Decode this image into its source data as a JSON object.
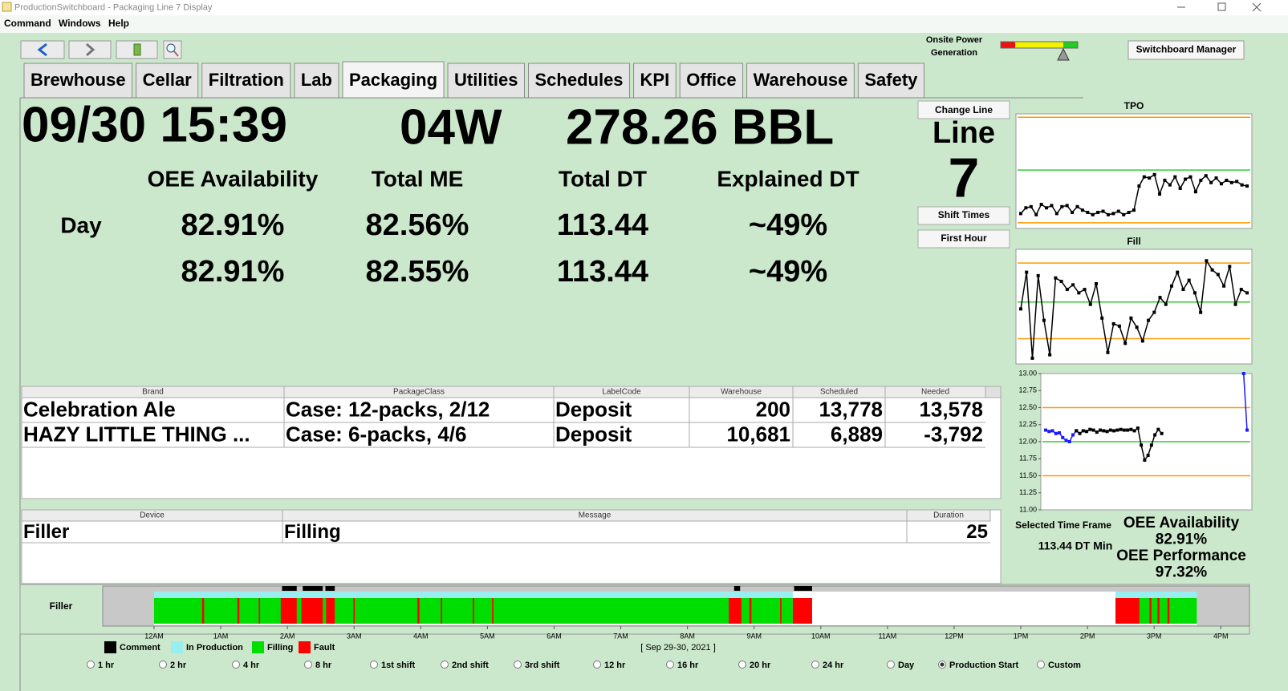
{
  "window": {
    "title": "ProductionSwitchboard - Packaging Line 7 Display",
    "menu": [
      "Command",
      "Windows",
      "Help"
    ]
  },
  "power": {
    "label_lines": [
      "Onsite Power",
      "Generation"
    ]
  },
  "switchboard_button": "Switchboard Manager",
  "tabs": [
    "Brewhouse",
    "Cellar",
    "Filtration",
    "Lab",
    "Packaging",
    "Utilities",
    "Schedules",
    "KPI",
    "Office",
    "Warehouse",
    "Safety"
  ],
  "active_tab": 4,
  "header": {
    "datetime": "09/30 15:39",
    "week": "04W",
    "volume": "278.26 BBL"
  },
  "metrics": {
    "columns": [
      "OEE Availability",
      "Total ME",
      "Total DT",
      "Explained DT"
    ],
    "rows": [
      {
        "label": "Day",
        "cells": [
          "82.91%",
          "82.56%",
          "113.44",
          "~49%"
        ]
      },
      {
        "cells": [
          "82.91%",
          "82.55%",
          "113.44",
          "~49%"
        ]
      }
    ]
  },
  "line_panel": {
    "change_button": "Change Line",
    "label": "Line",
    "number": "7",
    "buttons": [
      "Shift Times",
      "First Hour"
    ]
  },
  "brand_table": {
    "columns": [
      "Brand",
      "PackageClass",
      "LabelCode",
      "Warehouse",
      "Scheduled",
      "Needed"
    ],
    "rows": [
      [
        "Celebration Ale",
        "Case: 12-packs, 2/12",
        "Deposit",
        "200",
        "13,778",
        "13,578"
      ],
      [
        "HAZY LITTLE THING ...",
        "Case: 6-packs, 4/6",
        "Deposit",
        "10,681",
        "6,889",
        "-3,792"
      ]
    ]
  },
  "message_table": {
    "columns": [
      "Device",
      "Message",
      "Duration"
    ],
    "rows": [
      [
        "Filler",
        "Filling",
        "25"
      ]
    ]
  },
  "charts": [
    {
      "type": "line",
      "title": "TPO",
      "ylim": [
        0,
        100
      ],
      "limits": [
        {
          "value": 97,
          "color": "#ff9900"
        },
        {
          "value": 51,
          "color": "#33cc33"
        },
        {
          "value": 5,
          "color": "#ff9900"
        }
      ],
      "series": [
        {
          "color": "#000000",
          "values": [
            13,
            18,
            19,
            12,
            21,
            18,
            20,
            13,
            19,
            20,
            14,
            19,
            16,
            14,
            12,
            14,
            15,
            12,
            13,
            15,
            12,
            14,
            16,
            37,
            45,
            44,
            47,
            30,
            42,
            38,
            45,
            35,
            43,
            45,
            32,
            42,
            46,
            40,
            44,
            39,
            42,
            40,
            41,
            38,
            37
          ]
        }
      ]
    },
    {
      "type": "line",
      "title": "Fill",
      "ylim": [
        0,
        100
      ],
      "limits": [
        {
          "value": 88,
          "color": "#ff9900"
        },
        {
          "value": 54,
          "color": "#33cc33"
        },
        {
          "value": 22,
          "color": "#ff9900"
        }
      ],
      "series": [
        {
          "color": "#000000",
          "values": [
            48,
            80,
            5,
            77,
            38,
            8,
            75,
            72,
            65,
            69,
            62,
            65,
            52,
            70,
            40,
            10,
            35,
            33,
            18,
            40,
            32,
            20,
            38,
            45,
            58,
            52,
            68,
            80,
            65,
            73,
            62,
            45,
            90,
            82,
            78,
            68,
            85,
            52,
            65,
            62
          ]
        }
      ]
    },
    {
      "type": "line",
      "ylim": [
        11,
        13
      ],
      "yticks": [
        {
          "value": 11,
          "label": "11.00"
        },
        {
          "value": 11.25,
          "label": "11.25"
        },
        {
          "value": 11.5,
          "label": "11.50"
        },
        {
          "value": 11.75,
          "label": "11.75"
        },
        {
          "value": 12,
          "label": "12.00"
        },
        {
          "value": 12.25,
          "label": "12.25"
        },
        {
          "value": 12.5,
          "label": "12.50"
        },
        {
          "value": 12.75,
          "label": "12.75"
        },
        {
          "value": 13,
          "label": "13.00"
        }
      ],
      "limits": [
        {
          "value": 12.5,
          "color": "#ff9900"
        },
        {
          "value": 12,
          "color": "#33cc33"
        },
        {
          "value": 11.5,
          "color": "#ff9900"
        }
      ],
      "series": [
        {
          "color": "#1a1aff",
          "values": [
            12.17,
            12.15,
            12.16,
            12.12,
            12.13,
            12.06,
            12.02,
            12.0,
            12.1,
            12.16,
            null,
            null,
            null,
            null,
            null,
            null,
            null,
            null,
            null,
            null,
            null,
            null,
            null,
            null,
            null,
            null,
            null,
            null,
            null,
            null,
            null,
            null,
            null,
            null,
            null,
            null,
            null,
            null,
            null,
            null,
            null,
            null,
            null,
            null,
            null,
            null,
            null,
            null,
            null,
            null,
            null,
            null,
            null,
            null,
            null,
            null,
            null,
            null,
            13.0,
            12.17
          ]
        },
        {
          "color": "#000000",
          "values": [
            null,
            null,
            null,
            null,
            null,
            null,
            null,
            null,
            null,
            12.16,
            12.12,
            12.16,
            12.15,
            12.18,
            12.17,
            12.14,
            12.17,
            12.16,
            12.15,
            12.17,
            12.16,
            12.17,
            12.18,
            12.17,
            12.17,
            12.18,
            12.16,
            12.2,
            11.95,
            11.73,
            11.8,
            11.95,
            12.1,
            12.18,
            12.12,
            null,
            null,
            null,
            null,
            null,
            null,
            null,
            null,
            null,
            null,
            null,
            null,
            null,
            null,
            null,
            null,
            null,
            null,
            null,
            null,
            null,
            null,
            null,
            null,
            null
          ]
        }
      ]
    }
  ],
  "summary": {
    "frame_label": "Selected Time Frame",
    "dt": "113.44 DT Min",
    "availability_label": "OEE Availability",
    "availability": "82.91%",
    "performance_label": "OEE Performance",
    "performance": "97.32%"
  },
  "timeline": {
    "label": "Filler",
    "xlim": [
      -0.77,
      16.43
    ],
    "xticks": [
      {
        "value": 0,
        "label": "12AM"
      },
      {
        "value": 1,
        "label": "1AM"
      },
      {
        "value": 2,
        "label": "2AM"
      },
      {
        "value": 3,
        "label": "3AM"
      },
      {
        "value": 4,
        "label": "4AM"
      },
      {
        "value": 5,
        "label": "5AM"
      },
      {
        "value": 6,
        "label": "6AM"
      },
      {
        "value": 7,
        "label": "7AM"
      },
      {
        "value": 8,
        "label": "8AM"
      },
      {
        "value": 9,
        "label": "9AM"
      },
      {
        "value": 10,
        "label": "10AM"
      },
      {
        "value": 11,
        "label": "11AM"
      },
      {
        "value": 12,
        "label": "12PM"
      },
      {
        "value": 13,
        "label": "1PM"
      },
      {
        "value": 14,
        "label": "2PM"
      },
      {
        "value": 15,
        "label": "3PM"
      },
      {
        "value": 16,
        "label": "4PM"
      }
    ],
    "date": "[ Sep 29-30, 2021 ]",
    "legend": [
      {
        "name": "Comment",
        "color": "#000000",
        "spans": [
          [
            1.92,
            2.14
          ],
          [
            2.23,
            2.53
          ],
          [
            2.57,
            2.71
          ],
          [
            8.7,
            8.79
          ],
          [
            9.6,
            9.87
          ]
        ]
      },
      {
        "name": "In Production",
        "color": "#99eef0",
        "spans": [
          [
            0,
            9.58
          ],
          [
            14.42,
            15.64
          ]
        ]
      },
      {
        "name": "Filling",
        "color": "#00dd00",
        "spans": [
          [
            0,
            9.58
          ],
          [
            14.78,
            15.64
          ]
        ]
      },
      {
        "name": "Fault",
        "color": "#ff0000",
        "spans": [
          [
            0.72,
            0.75
          ],
          [
            1.25,
            1.28
          ],
          [
            1.57,
            1.59
          ],
          [
            1.9,
            2.14
          ],
          [
            2.21,
            2.53
          ],
          [
            2.58,
            2.71
          ],
          [
            2.99,
            3.01
          ],
          [
            3.95,
            3.98
          ],
          [
            4.3,
            4.32
          ],
          [
            4.78,
            4.8
          ],
          [
            5.07,
            5.09
          ],
          [
            8.62,
            8.81
          ],
          [
            8.93,
            8.96
          ],
          [
            9.39,
            9.41
          ],
          [
            9.58,
            9.87
          ],
          [
            14.42,
            14.78
          ],
          [
            14.93,
            14.96
          ],
          [
            15.05,
            15.08
          ],
          [
            15.2,
            15.23
          ]
        ]
      }
    ],
    "range_options": [
      "1 hr",
      "2 hr",
      "4 hr",
      "8 hr",
      "1st shift",
      "2nd shift",
      "3rd shift",
      "12 hr",
      "16 hr",
      "20 hr",
      "24 hr",
      "Day",
      "Production Start",
      "Custom"
    ],
    "selected_range": 12
  }
}
